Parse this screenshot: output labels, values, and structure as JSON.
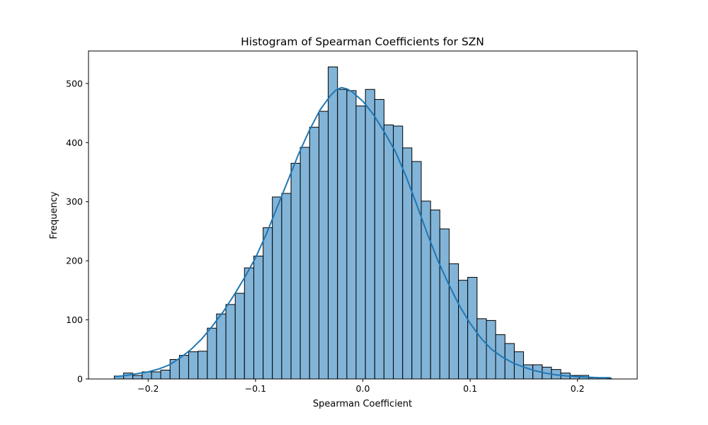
{
  "chart_data": {
    "type": "bar",
    "title": "Histogram of Spearman Coefficients for SZN",
    "xlabel": "Spearman Coefficient",
    "ylabel": "Frequency",
    "xlim": [
      -0.2556,
      0.2556
    ],
    "ylim": [
      0,
      555
    ],
    "grid": false,
    "bar_color": "#82b4d8",
    "edge_color": "#000000",
    "kde_color": "#1f77b4",
    "x_ticks": [
      {
        "value": -0.2,
        "label": "−0.2"
      },
      {
        "value": -0.1,
        "label": "−0.1"
      },
      {
        "value": 0.0,
        "label": "0.0"
      },
      {
        "value": 0.1,
        "label": "0.1"
      },
      {
        "value": 0.2,
        "label": "0.2"
      }
    ],
    "y_ticks": [
      {
        "value": 0,
        "label": "0"
      },
      {
        "value": 100,
        "label": "100"
      },
      {
        "value": 200,
        "label": "200"
      },
      {
        "value": 300,
        "label": "300"
      },
      {
        "value": 400,
        "label": "400"
      },
      {
        "value": 500,
        "label": "500"
      }
    ],
    "bins": [
      {
        "x0": -0.2316,
        "x1": -0.2229,
        "count": 5
      },
      {
        "x0": -0.2229,
        "x1": -0.2143,
        "count": 10
      },
      {
        "x0": -0.2143,
        "x1": -0.2056,
        "count": 6
      },
      {
        "x0": -0.2056,
        "x1": -0.1969,
        "count": 12
      },
      {
        "x0": -0.1969,
        "x1": -0.1883,
        "count": 12
      },
      {
        "x0": -0.1883,
        "x1": -0.1796,
        "count": 15
      },
      {
        "x0": -0.1796,
        "x1": -0.1709,
        "count": 33
      },
      {
        "x0": -0.1709,
        "x1": -0.1623,
        "count": 40
      },
      {
        "x0": -0.1623,
        "x1": -0.1536,
        "count": 46
      },
      {
        "x0": -0.1536,
        "x1": -0.1449,
        "count": 47
      },
      {
        "x0": -0.1449,
        "x1": -0.1363,
        "count": 86
      },
      {
        "x0": -0.1363,
        "x1": -0.1276,
        "count": 110
      },
      {
        "x0": -0.1276,
        "x1": -0.1189,
        "count": 126
      },
      {
        "x0": -0.1189,
        "x1": -0.1103,
        "count": 145
      },
      {
        "x0": -0.1103,
        "x1": -0.1016,
        "count": 188
      },
      {
        "x0": -0.1016,
        "x1": -0.0929,
        "count": 208
      },
      {
        "x0": -0.0929,
        "x1": -0.0843,
        "count": 256
      },
      {
        "x0": -0.0843,
        "x1": -0.0756,
        "count": 308
      },
      {
        "x0": -0.0756,
        "x1": -0.0669,
        "count": 314
      },
      {
        "x0": -0.0669,
        "x1": -0.0583,
        "count": 365
      },
      {
        "x0": -0.0583,
        "x1": -0.0496,
        "count": 392
      },
      {
        "x0": -0.0496,
        "x1": -0.0409,
        "count": 426
      },
      {
        "x0": -0.0409,
        "x1": -0.0323,
        "count": 453
      },
      {
        "x0": -0.0323,
        "x1": -0.0236,
        "count": 528
      },
      {
        "x0": -0.0236,
        "x1": -0.0149,
        "count": 490
      },
      {
        "x0": -0.0149,
        "x1": -0.0063,
        "count": 488
      },
      {
        "x0": -0.0063,
        "x1": 0.0024,
        "count": 462
      },
      {
        "x0": 0.0024,
        "x1": 0.0111,
        "count": 490
      },
      {
        "x0": 0.0111,
        "x1": 0.0197,
        "count": 473
      },
      {
        "x0": 0.0197,
        "x1": 0.0284,
        "count": 430
      },
      {
        "x0": 0.0284,
        "x1": 0.0371,
        "count": 428
      },
      {
        "x0": 0.0371,
        "x1": 0.0457,
        "count": 391
      },
      {
        "x0": 0.0457,
        "x1": 0.0544,
        "count": 368
      },
      {
        "x0": 0.0544,
        "x1": 0.0631,
        "count": 301
      },
      {
        "x0": 0.0631,
        "x1": 0.0717,
        "count": 286
      },
      {
        "x0": 0.0717,
        "x1": 0.0804,
        "count": 254
      },
      {
        "x0": 0.0804,
        "x1": 0.0891,
        "count": 195
      },
      {
        "x0": 0.0891,
        "x1": 0.0977,
        "count": 167
      },
      {
        "x0": 0.0977,
        "x1": 0.1064,
        "count": 172
      },
      {
        "x0": 0.1064,
        "x1": 0.1151,
        "count": 102
      },
      {
        "x0": 0.1151,
        "x1": 0.1237,
        "count": 99
      },
      {
        "x0": 0.1237,
        "x1": 0.1324,
        "count": 75
      },
      {
        "x0": 0.1324,
        "x1": 0.1411,
        "count": 60
      },
      {
        "x0": 0.1411,
        "x1": 0.1497,
        "count": 46
      },
      {
        "x0": 0.1497,
        "x1": 0.1584,
        "count": 24
      },
      {
        "x0": 0.1584,
        "x1": 0.1671,
        "count": 24
      },
      {
        "x0": 0.1671,
        "x1": 0.1757,
        "count": 20
      },
      {
        "x0": 0.1757,
        "x1": 0.1844,
        "count": 16
      },
      {
        "x0": 0.1844,
        "x1": 0.1931,
        "count": 10
      },
      {
        "x0": 0.1931,
        "x1": 0.2017,
        "count": 6
      },
      {
        "x0": 0.2017,
        "x1": 0.2104,
        "count": 6
      },
      {
        "x0": 0.2104,
        "x1": 0.2191,
        "count": 2
      },
      {
        "x0": 0.2191,
        "x1": 0.2277,
        "count": 2
      },
      {
        "x0": 0.2277,
        "x1": 0.2316,
        "count": 1
      }
    ],
    "kde": {
      "x": [
        -0.231,
        -0.22,
        -0.21,
        -0.2,
        -0.19,
        -0.18,
        -0.17,
        -0.16,
        -0.15,
        -0.14,
        -0.13,
        -0.12,
        -0.11,
        -0.1,
        -0.09,
        -0.08,
        -0.07,
        -0.06,
        -0.05,
        -0.04,
        -0.03,
        -0.025,
        -0.02,
        -0.015,
        -0.01,
        -0.005,
        0.0,
        0.01,
        0.02,
        0.03,
        0.04,
        0.05,
        0.06,
        0.07,
        0.08,
        0.09,
        0.1,
        0.11,
        0.12,
        0.13,
        0.14,
        0.15,
        0.16,
        0.17,
        0.18,
        0.19,
        0.2,
        0.21,
        0.22,
        0.231
      ],
      "y": [
        4,
        6,
        9,
        12,
        17,
        24,
        36,
        50,
        68,
        90,
        114,
        142,
        172,
        205,
        245,
        290,
        335,
        380,
        420,
        455,
        480,
        489,
        493,
        491,
        486,
        478,
        470,
        447,
        418,
        386,
        344,
        296,
        246,
        200,
        160,
        124,
        94,
        69,
        50,
        37,
        27,
        20,
        14,
        10,
        7,
        5,
        4,
        3,
        2,
        2
      ]
    }
  }
}
